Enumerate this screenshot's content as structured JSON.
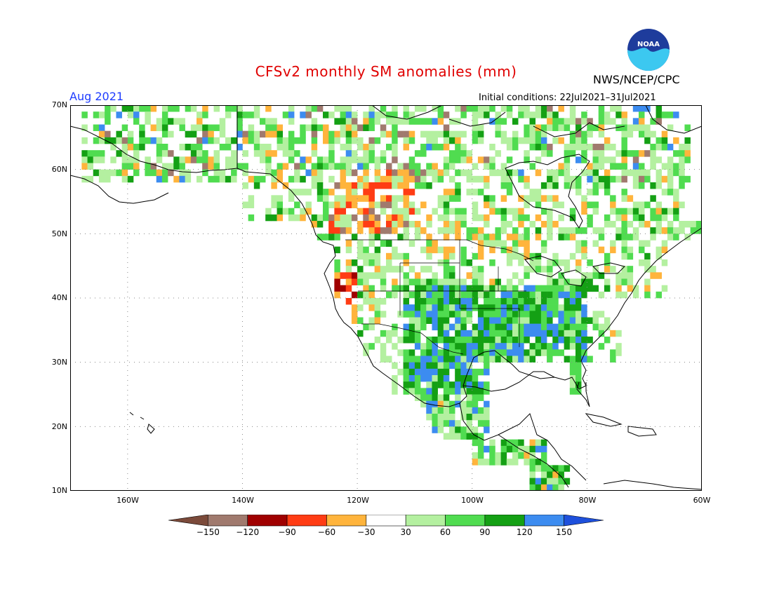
{
  "header": {
    "title": "CFSv2 monthly SM anomalies (mm)",
    "agency": "NWS/NCEP/CPC",
    "logo_text": "NOAA",
    "period": "Aug 2021",
    "initial_conditions": "Initial conditions: 22Jul2021–31Jul2021"
  },
  "map": {
    "projection": "lat-lon",
    "lon_range": [
      -170,
      -60
    ],
    "lat_range": [
      10,
      70
    ],
    "lat_ticks": [
      "70N",
      "60N",
      "50N",
      "40N",
      "30N",
      "20N",
      "10N"
    ],
    "lon_ticks": [
      "160W",
      "140W",
      "120W",
      "100W",
      "80W",
      "60W"
    ],
    "gridlines": "dotted"
  },
  "colorbar": {
    "labels": [
      "−150",
      "−120",
      "−90",
      "−60",
      "−30",
      "30",
      "60",
      "90",
      "120",
      "150"
    ],
    "colors": [
      "#7b4a3a",
      "#a07a6e",
      "#a00000",
      "#ff3c14",
      "#ffb43c",
      "#ffffff",
      "#b4f0a0",
      "#50dc50",
      "#14a014",
      "#3c8cf0",
      "#1e50dc"
    ]
  },
  "regions": [
    {
      "name": "US Southern Plains / Mexico north",
      "anomaly": "wet, 90 to 150+"
    },
    {
      "name": "Central / Southeast US",
      "anomaly": "wet, 60 to 150"
    },
    {
      "name": "Pacific Northwest / California coast",
      "anomaly": "dry, -30 to -120"
    },
    {
      "name": "Western Canada (BC/Alberta)",
      "anomaly": "dry, -30 to -120"
    },
    {
      "name": "Alaska / Northern Canada",
      "anomaly": "mostly near normal to wet"
    }
  ]
}
